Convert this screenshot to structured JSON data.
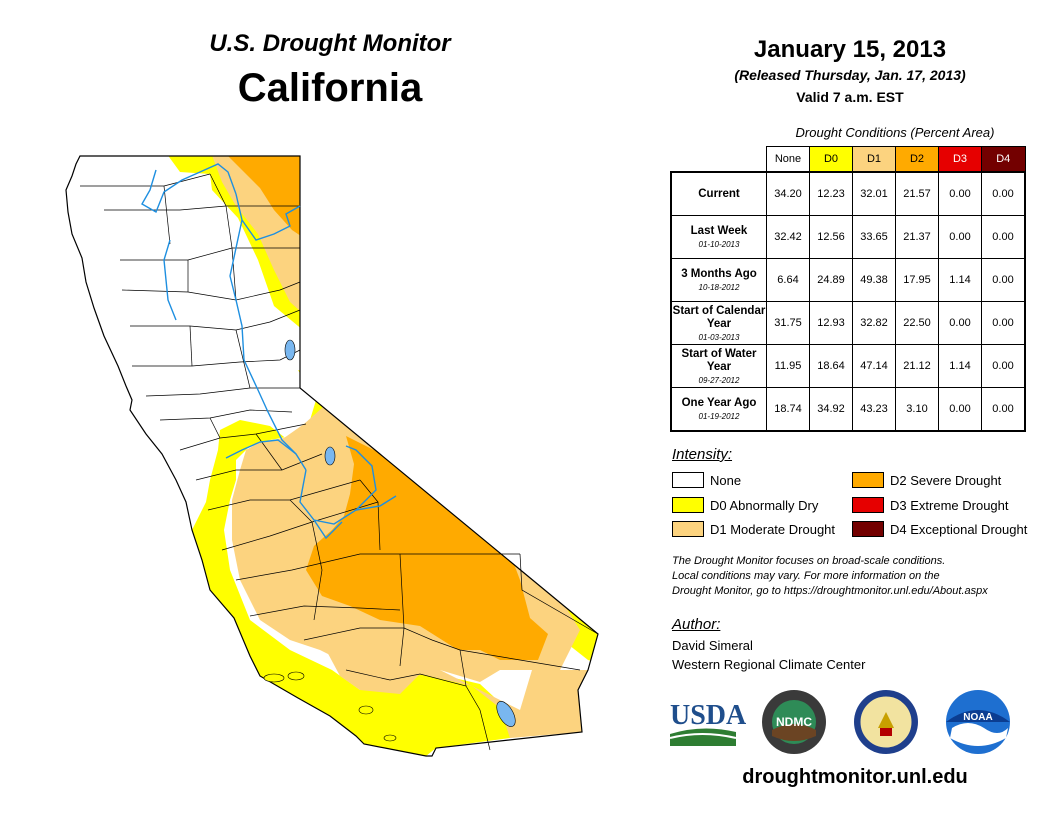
{
  "header": {
    "brand": "U.S. Drought Monitor",
    "region": "California",
    "date": "January 15, 2013",
    "released": "(Released Thursday, Jan. 17, 2013)",
    "valid": "Valid 7 a.m. EST"
  },
  "table": {
    "caption": "Drought Conditions (Percent Area)",
    "categories": [
      "None",
      "D0",
      "D1",
      "D2",
      "D3",
      "D4"
    ],
    "category_colors": [
      "#ffffff",
      "#ffff00",
      "#fcd37f",
      "#ffaa00",
      "#e60000",
      "#730000"
    ],
    "category_text_colors": [
      "#000000",
      "#000000",
      "#000000",
      "#000000",
      "#ffffff",
      "#ffffff"
    ],
    "rows": [
      {
        "label": "Current",
        "date": "",
        "values": [
          "34.20",
          "12.23",
          "32.01",
          "21.57",
          "0.00",
          "0.00"
        ]
      },
      {
        "label": "Last Week",
        "date": "01-10-2013",
        "values": [
          "32.42",
          "12.56",
          "33.65",
          "21.37",
          "0.00",
          "0.00"
        ]
      },
      {
        "label": "3 Months Ago",
        "date": "10-18-2012",
        "values": [
          "6.64",
          "24.89",
          "49.38",
          "17.95",
          "1.14",
          "0.00"
        ]
      },
      {
        "label": "Start of Calendar Year",
        "date": "01-03-2013",
        "values": [
          "31.75",
          "12.93",
          "32.82",
          "22.50",
          "0.00",
          "0.00"
        ]
      },
      {
        "label": "Start of Water Year",
        "date": "09-27-2012",
        "values": [
          "11.95",
          "18.64",
          "47.14",
          "21.12",
          "1.14",
          "0.00"
        ]
      },
      {
        "label": "One Year Ago",
        "date": "01-19-2012",
        "values": [
          "18.74",
          "34.92",
          "43.23",
          "3.10",
          "0.00",
          "0.00"
        ]
      }
    ]
  },
  "legend": {
    "title": "Intensity:",
    "items": [
      {
        "label": "None",
        "color": "#ffffff"
      },
      {
        "label": "D0 Abnormally Dry",
        "color": "#ffff00"
      },
      {
        "label": "D1 Moderate Drought",
        "color": "#fcd37f"
      },
      {
        "label": "D2 Severe Drought",
        "color": "#ffaa00"
      },
      {
        "label": "D3 Extreme Drought",
        "color": "#e60000"
      },
      {
        "label": "D4 Exceptional Drought",
        "color": "#730000"
      }
    ]
  },
  "note": {
    "line1": "The Drought Monitor focuses on broad-scale conditions.",
    "line2": "Local conditions may vary. For more information on the",
    "line3": "Drought Monitor, go to https://droughtmonitor.unl.edu/About.aspx"
  },
  "author": {
    "title": "Author:",
    "name": "David Simeral",
    "org": "Western Regional Climate Center"
  },
  "logos": {
    "usda": "USDA",
    "ndmc": "NDMC",
    "noaa": "NOAA"
  },
  "footer": {
    "url": "droughtmonitor.unl.edu"
  },
  "map_colors": {
    "none": "#ffffff",
    "d0": "#ffff00",
    "d1": "#fcd37f",
    "d2": "#ffaa00",
    "water": "#79b7f0",
    "river": "#1e8fe0",
    "border": "#000000"
  }
}
